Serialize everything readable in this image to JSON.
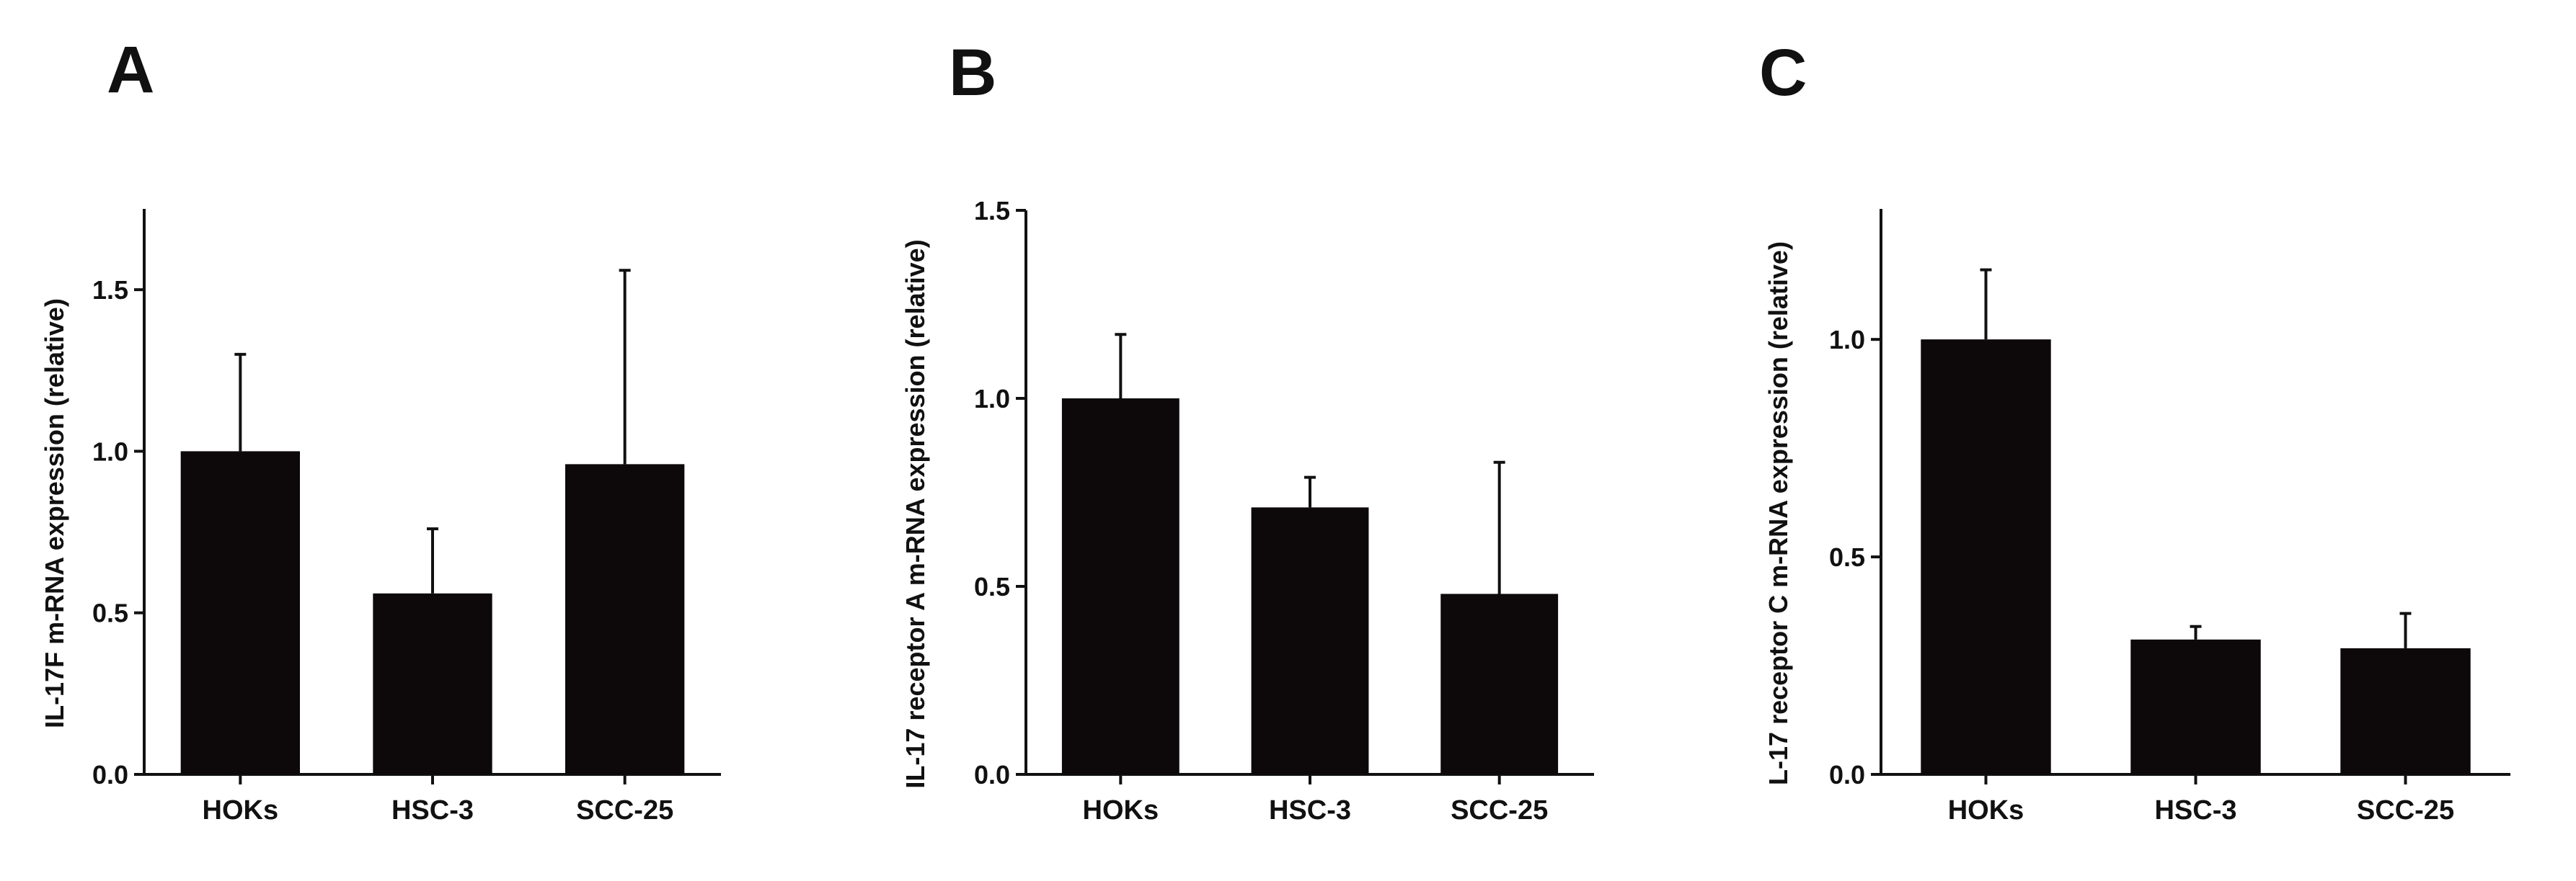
{
  "chart_data": [
    {
      "type": "bar",
      "panel": "A",
      "ylabel": "IL-17F m-RNA expression (relative)",
      "categories": [
        "HOKs",
        "HSC-3",
        "SCC-25"
      ],
      "values": [
        1.0,
        0.56,
        0.96
      ],
      "errors": [
        0.3,
        0.2,
        0.6
      ],
      "ylim": [
        0,
        1.75
      ],
      "yticks": [
        "0.0",
        "0.5",
        "1.0",
        "1.5"
      ],
      "color": "#0d0809"
    },
    {
      "type": "bar",
      "panel": "B",
      "ylabel": "IL-17 receptor A m-RNA expression (relative)",
      "categories": [
        "HOKs",
        "HSC-3",
        "SCC-25"
      ],
      "values": [
        1.0,
        0.71,
        0.48
      ],
      "errors": [
        0.17,
        0.08,
        0.35
      ],
      "ylim": [
        0,
        1.5
      ],
      "yticks": [
        "0.0",
        "0.5",
        "1.0",
        "1.5"
      ],
      "color": "#0d0809"
    },
    {
      "type": "bar",
      "panel": "C",
      "ylabel": "L-17 receptor C m-RNA expression (relative)",
      "categories": [
        "HOKs",
        "HSC-3",
        "SCC-25"
      ],
      "values": [
        1.0,
        0.31,
        0.29
      ],
      "errors": [
        0.16,
        0.03,
        0.08
      ],
      "ylim": [
        0,
        1.3
      ],
      "yticks": [
        "0.0",
        "0.5",
        "1.0"
      ],
      "color": "#0d0809"
    }
  ]
}
